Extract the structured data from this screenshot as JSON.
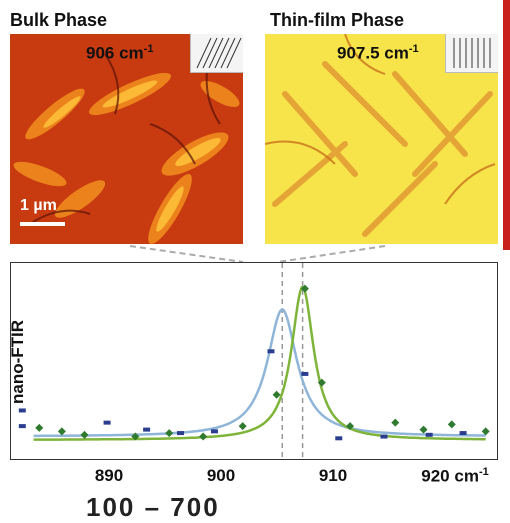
{
  "panels": {
    "bulk": {
      "title": "Bulk Phase",
      "wavenumber": "906 cm",
      "exponent": "-1",
      "scale_bar": "1 µm"
    },
    "thin": {
      "title": "Thin-film Phase",
      "wavenumber": "907.5 cm",
      "exponent": "-1"
    }
  },
  "plot": {
    "ylabel": "nano-FTIR",
    "xunit": "cm",
    "xunit_exp": "-1",
    "xticks": [
      "890",
      "900",
      "910",
      "920"
    ],
    "bottom_text": "100 – 700"
  },
  "chart_data": {
    "type": "line",
    "xlim": [
      880,
      923
    ],
    "ylim": [
      0,
      1.0
    ],
    "xlabel": "cm-1",
    "ylabel": "nano-FTIR",
    "grid": false,
    "series": [
      {
        "color": "#8fb5d8",
        "fit_center": 904.0,
        "fit_width": 1.6,
        "fit_amplitude": 0.73,
        "fit_baseline": 0.06,
        "points": [
          [
            881,
            0.21
          ],
          [
            881,
            0.12
          ],
          [
            888.5,
            0.14
          ],
          [
            892,
            0.1
          ],
          [
            895,
            0.08
          ],
          [
            898,
            0.09
          ],
          [
            903,
            0.55
          ],
          [
            906,
            0.42
          ],
          [
            909,
            0.05
          ],
          [
            913,
            0.06
          ],
          [
            917,
            0.07
          ],
          [
            920,
            0.08
          ]
        ]
      },
      {
        "color": "#7fb43a",
        "marker_color": "#2f7a2e",
        "fit_center": 905.8,
        "fit_width": 1.2,
        "fit_amplitude": 0.88,
        "fit_baseline": 0.04,
        "points": [
          [
            882.5,
            0.11
          ],
          [
            884.5,
            0.09
          ],
          [
            886.5,
            0.07
          ],
          [
            891,
            0.06
          ],
          [
            894,
            0.08
          ],
          [
            897,
            0.06
          ],
          [
            900.5,
            0.12
          ],
          [
            903.5,
            0.3
          ],
          [
            906,
            0.91
          ],
          [
            907.5,
            0.37
          ],
          [
            910,
            0.12
          ],
          [
            914,
            0.14
          ],
          [
            916.5,
            0.1
          ],
          [
            919,
            0.13
          ],
          [
            922,
            0.09
          ]
        ]
      }
    ]
  }
}
